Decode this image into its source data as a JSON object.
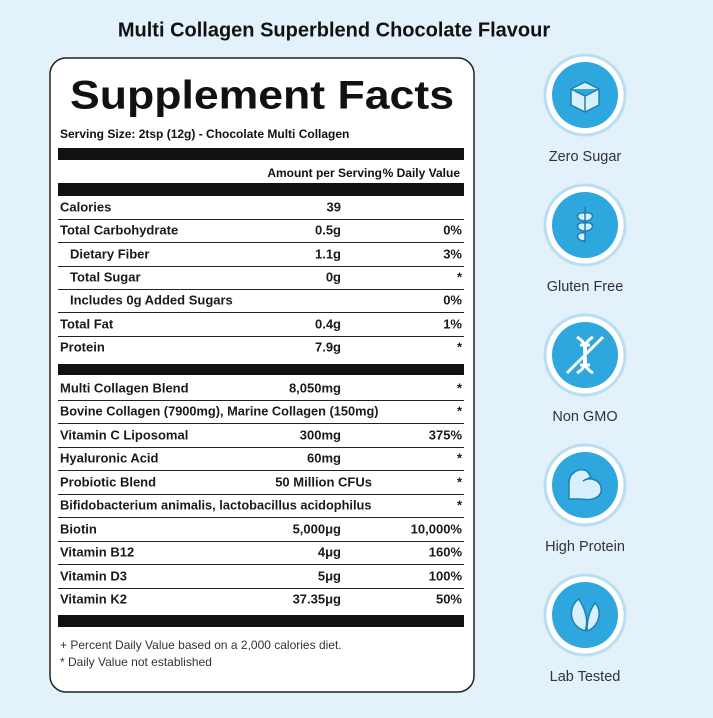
{
  "title": "Multi Collagen Superblend Chocolate Flavour",
  "panel": {
    "heading": "Supplement Facts",
    "serving": "Serving Size: 2tsp (12g) - Chocolate Multi Collagen",
    "header": {
      "amount": "Amount per Serving",
      "dv": "% Daily Value"
    },
    "rows": [
      {
        "name": "Calories",
        "amount": "39"
      },
      {
        "name": "Total Carbohydrate",
        "amount": "0.5g",
        "dv": "0%"
      },
      {
        "name": "Dietary Fiber",
        "amount": "1.1g",
        "dv": "3%"
      },
      {
        "name": "Total Sugar",
        "amount": "0g",
        "dv": "*"
      },
      {
        "name": "Includes 0g Added Sugars",
        "dv": "0%"
      },
      {
        "name": "Total Fat",
        "amount": "0.4g",
        "dv": "1%"
      },
      {
        "name": "Protein",
        "amount": "7.9g",
        "dv": "*"
      },
      {
        "name": "Multi Collagen Blend",
        "amount": "8,050mg",
        "dv": "*"
      },
      {
        "name": "Bovine Collagen (7900mg), Marine Collagen (150mg)",
        "dv": "*"
      },
      {
        "name": "Vitamin C Liposomal",
        "amount": "300mg",
        "dv": "375%"
      },
      {
        "name": "Hyaluronic Acid",
        "amount": "60mg",
        "dv": "*"
      },
      {
        "name": "Probiotic Blend",
        "amount": "50 Million CFUs",
        "dv": "*"
      },
      {
        "name": "Bifidobacterium animalis, lactobacillus acidophilus",
        "dv": "*"
      },
      {
        "name": "Biotin",
        "amount": "5,000μg",
        "dv": "10,000%"
      },
      {
        "name": "Vitamin B12",
        "amount": "4μg",
        "dv": "160%"
      },
      {
        "name": "Vitamin D3",
        "amount": "5μg",
        "dv": "100%"
      },
      {
        "name": "Vitamin K2",
        "amount": "37.35μg",
        "dv": "50%"
      }
    ],
    "footnotes": [
      "+ Percent Daily Value based on a 2,000 calories diet.",
      "* Daily Value not established"
    ]
  },
  "badges": [
    "Zero Sugar",
    "Gluten Free",
    "Non GMO",
    "High Protein",
    "Lab Tested"
  ]
}
